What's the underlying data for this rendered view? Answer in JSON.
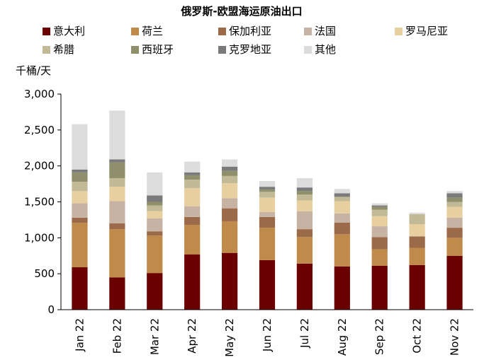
{
  "chart_data": {
    "type": "bar",
    "stacked": true,
    "title": "俄罗斯-欧盟海运原油出口",
    "ylabel": "千桶/天",
    "xlabel": "",
    "ylim": [
      0,
      3000
    ],
    "yticks": [
      0,
      500,
      1000,
      1500,
      2000,
      2500,
      3000
    ],
    "ytick_labels": [
      "0",
      "500",
      "1,000",
      "1,500",
      "2,000",
      "2,500",
      "3,000"
    ],
    "grid": false,
    "legend_position": "top",
    "categories": [
      "Jan 22",
      "Feb 22",
      "Mar 22",
      "Apr 22",
      "May 22",
      "Jun 22",
      "Jul 22",
      "Aug 22",
      "Sep 22",
      "Oct 22",
      "Nov 22"
    ],
    "series": [
      {
        "name": "意大利",
        "color": "#6b0000",
        "values": [
          590,
          450,
          510,
          770,
          790,
          690,
          640,
          600,
          610,
          620,
          750
        ]
      },
      {
        "name": "荷兰",
        "color": "#c08a4a",
        "values": [
          620,
          670,
          520,
          410,
          440,
          450,
          370,
          450,
          230,
          240,
          250
        ]
      },
      {
        "name": "保加利亚",
        "color": "#9b6a48",
        "values": [
          70,
          80,
          60,
          110,
          180,
          150,
          110,
          160,
          170,
          160,
          140
        ]
      },
      {
        "name": "法国",
        "color": "#c7b3a3",
        "values": [
          200,
          310,
          180,
          150,
          140,
          70,
          250,
          130,
          150,
          0,
          140
        ]
      },
      {
        "name": "罗马尼亚",
        "color": "#e8cfa0",
        "values": [
          170,
          200,
          100,
          250,
          210,
          200,
          150,
          170,
          140,
          170,
          150
        ]
      },
      {
        "name": "希腊",
        "color": "#c2ba96",
        "values": [
          130,
          120,
          80,
          120,
          100,
          80,
          80,
          60,
          90,
          140,
          70
        ]
      },
      {
        "name": "西班牙",
        "color": "#8f8f6c",
        "values": [
          130,
          220,
          50,
          60,
          70,
          30,
          50,
          0,
          40,
          0,
          60
        ]
      },
      {
        "name": "克罗地亚",
        "color": "#7a7a7a",
        "values": [
          40,
          40,
          90,
          40,
          60,
          40,
          50,
          50,
          20,
          0,
          60
        ]
      },
      {
        "name": "其他",
        "color": "#dcdcdc",
        "values": [
          630,
          680,
          320,
          150,
          100,
          80,
          130,
          60,
          30,
          20,
          30
        ]
      }
    ]
  }
}
